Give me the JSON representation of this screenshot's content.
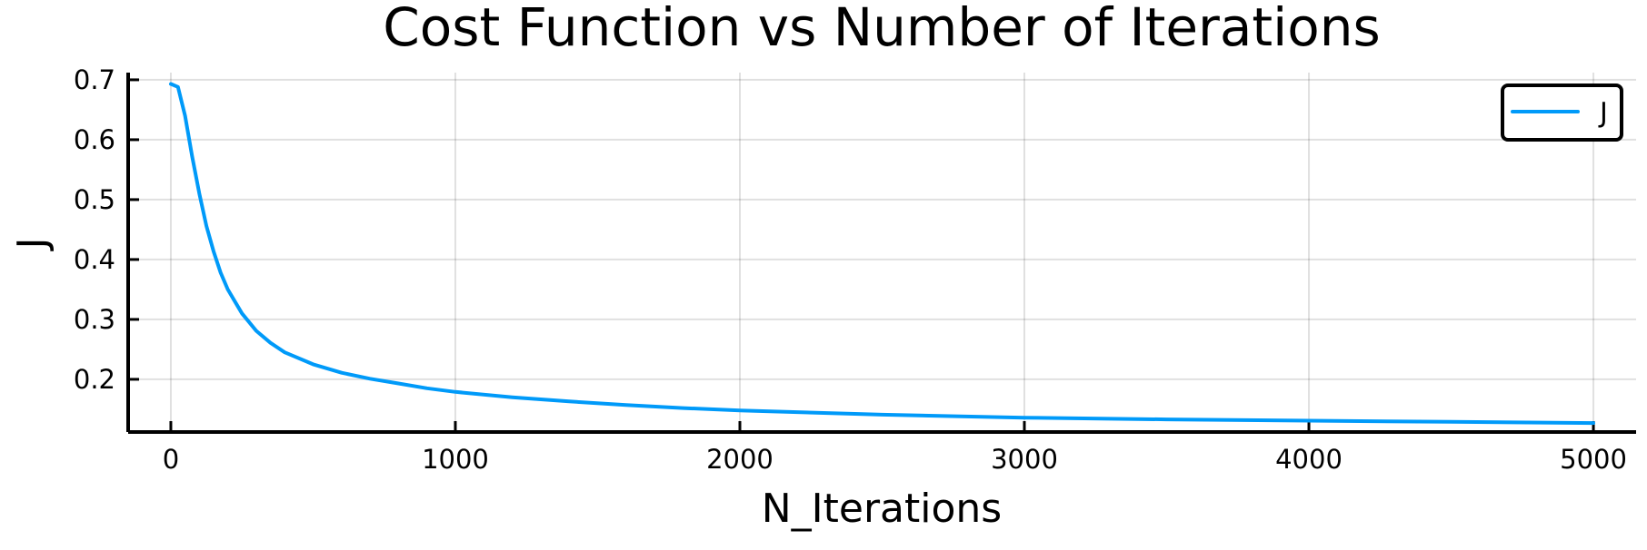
{
  "chart_data": {
    "type": "line",
    "title": "Cost Function vs Number of Iterations",
    "xlabel": "N_Iterations",
    "ylabel": "J",
    "xlim": [
      -150,
      5150
    ],
    "ylim": [
      0.112,
      0.712
    ],
    "xticks": [
      0,
      1000,
      2000,
      3000,
      4000,
      5000
    ],
    "xtick_labels": [
      "0",
      "1000",
      "2000",
      "3000",
      "4000",
      "5000"
    ],
    "yticks": [
      0.2,
      0.3,
      0.4,
      0.5,
      0.6,
      0.7
    ],
    "ytick_labels": [
      "0.2",
      "0.3",
      "0.4",
      "0.5",
      "0.6",
      "0.7"
    ],
    "grid": true,
    "legend_position": "top-right",
    "series": [
      {
        "name": "J",
        "color": "#009af9",
        "x": [
          0,
          25,
          50,
          75,
          100,
          125,
          150,
          175,
          200,
          250,
          300,
          350,
          400,
          500,
          600,
          700,
          800,
          900,
          1000,
          1200,
          1400,
          1600,
          1800,
          2000,
          2500,
          3000,
          3500,
          4000,
          4500,
          5000
        ],
        "y": [
          0.693,
          0.688,
          0.64,
          0.572,
          0.51,
          0.456,
          0.414,
          0.378,
          0.35,
          0.31,
          0.281,
          0.261,
          0.245,
          0.225,
          0.211,
          0.201,
          0.193,
          0.185,
          0.179,
          0.17,
          0.163,
          0.157,
          0.152,
          0.148,
          0.141,
          0.136,
          0.133,
          0.131,
          0.129,
          0.127
        ]
      }
    ]
  }
}
